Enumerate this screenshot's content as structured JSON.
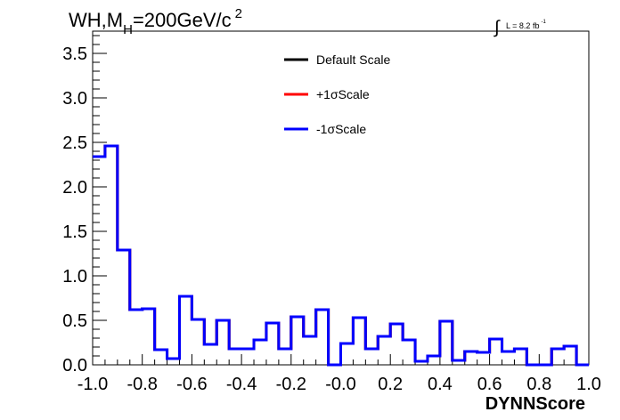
{
  "chart_data": {
    "type": "step",
    "title": {
      "prefix": "WH,M",
      "subscript": "H",
      "middle": "=200GeV/c",
      "superscript": "2"
    },
    "lumi": {
      "integral_symbol": "∫",
      "text": "L = 8.2 fb",
      "superscript": "-1"
    },
    "xlabel": "DYNNScore",
    "ylabel": "",
    "xlim": [
      -1.0,
      1.0
    ],
    "ylim": [
      0.0,
      3.75
    ],
    "x_ticks": [
      "-1.0",
      "-0.8",
      "-0.6",
      "-0.4",
      "-0.2",
      "-0.0",
      "0.2",
      "0.4",
      "0.6",
      "0.8",
      "1.0"
    ],
    "y_ticks": [
      "0.0",
      "0.5",
      "1.0",
      "1.5",
      "2.0",
      "2.5",
      "3.0",
      "3.5"
    ],
    "bins": 40,
    "legend_position": "top-center",
    "series": [
      {
        "name": "Default Scale",
        "color": "#000000"
      },
      {
        "name": "+1σScale",
        "color": "#ff0000"
      },
      {
        "name": "-1σScale",
        "color": "#0000ff"
      }
    ],
    "values": [
      2.34,
      2.46,
      1.29,
      0.62,
      0.63,
      0.17,
      0.07,
      0.77,
      0.51,
      0.23,
      0.5,
      0.18,
      0.18,
      0.28,
      0.47,
      0.18,
      0.54,
      0.32,
      0.62,
      0.0,
      0.24,
      0.53,
      0.18,
      0.32,
      0.46,
      0.28,
      0.04,
      0.1,
      0.49,
      0.05,
      0.15,
      0.14,
      0.29,
      0.15,
      0.18,
      0.0,
      0.0,
      0.18,
      0.21,
      0.0
    ]
  }
}
